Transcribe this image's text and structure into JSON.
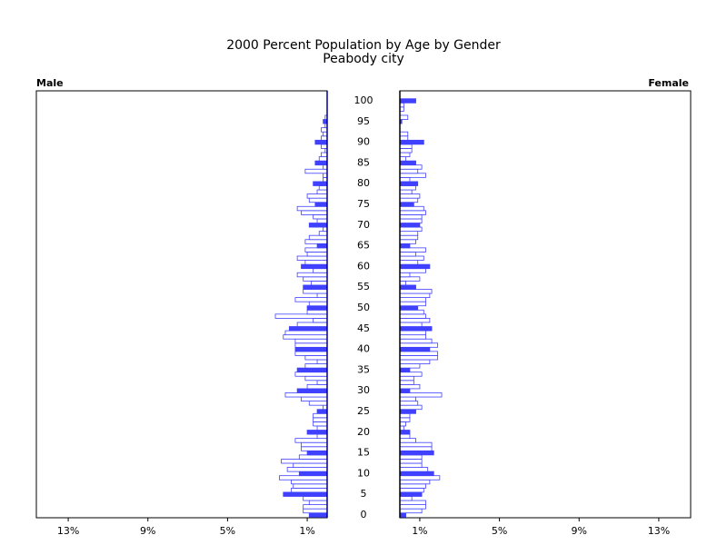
{
  "chart_data": {
    "type": "pyramid",
    "title": "2000 Percent Population by Age by Gender",
    "subtitle": "Peabody city",
    "categories": [
      0,
      null,
      null,
      null,
      null,
      5,
      null,
      null,
      null,
      null,
      10,
      null,
      null,
      null,
      null,
      15,
      null,
      null,
      null,
      null,
      20,
      null,
      null,
      null,
      null,
      25,
      null,
      null,
      null,
      null,
      30,
      null,
      null,
      null,
      null,
      35,
      null,
      null,
      null,
      null,
      40,
      null,
      null,
      null,
      null,
      45,
      null,
      null,
      null,
      null,
      50,
      null,
      null,
      null,
      null,
      55,
      null,
      null,
      null,
      null,
      60,
      null,
      null,
      null,
      null,
      65,
      null,
      null,
      null,
      null,
      70,
      null,
      null,
      null,
      null,
      75,
      null,
      null,
      null,
      null,
      80,
      null,
      null,
      null,
      null,
      85,
      null,
      null,
      null,
      null,
      90,
      null,
      null,
      null,
      null,
      95,
      null,
      null,
      null,
      null,
      100
    ],
    "series": [
      {
        "name": "Male",
        "color": "#4040ff",
        "values": [
          0.9,
          1.2,
          1.2,
          0.9,
          1.2,
          2.2,
          1.8,
          1.7,
          1.8,
          2.4,
          1.4,
          2.0,
          1.7,
          2.3,
          1.4,
          1.0,
          1.3,
          1.3,
          1.6,
          0.5,
          1.0,
          0.5,
          0.7,
          0.7,
          0.7,
          0.5,
          0.2,
          0.9,
          1.3,
          2.1,
          1.5,
          1.0,
          0.5,
          1.1,
          1.6,
          1.5,
          1.1,
          0.5,
          1.1,
          1.6,
          1.6,
          1.6,
          1.6,
          2.2,
          2.1,
          1.9,
          1.5,
          0.7,
          2.6,
          1.0,
          1.0,
          0.9,
          1.6,
          0.5,
          1.2,
          1.2,
          0.8,
          1.2,
          1.5,
          0.7,
          1.3,
          1.1,
          1.5,
          1.0,
          1.1,
          0.5,
          1.1,
          0.9,
          0.4,
          0.2,
          0.9,
          0.5,
          0.7,
          1.3,
          1.5,
          0.6,
          0.9,
          1.0,
          0.5,
          0.4,
          0.7,
          0.2,
          0.2,
          1.1,
          0.2,
          0.6,
          0.4,
          0.3,
          0.1,
          0.3,
          0.6,
          0.3,
          0.2,
          0.3,
          0.1,
          0.2,
          0.1,
          0,
          0,
          0,
          0
        ]
      },
      {
        "name": "Female",
        "color": "#4040ff",
        "values": [
          0.3,
          1.1,
          1.3,
          1.3,
          0.6,
          1.1,
          1.2,
          1.3,
          1.5,
          2.0,
          1.7,
          1.4,
          1.1,
          1.1,
          1.1,
          1.7,
          1.6,
          1.6,
          0.8,
          0.5,
          0.5,
          0.2,
          0.3,
          0.5,
          0.5,
          0.8,
          1.1,
          0.9,
          0.8,
          2.1,
          0.5,
          1.0,
          0.7,
          0.7,
          1.1,
          0.5,
          1.0,
          1.5,
          1.9,
          1.9,
          1.5,
          1.9,
          1.6,
          1.3,
          1.3,
          1.6,
          1.1,
          1.5,
          1.3,
          1.2,
          0.9,
          1.3,
          1.3,
          1.5,
          1.6,
          0.8,
          0.3,
          1.0,
          0.5,
          1.3,
          1.5,
          0.9,
          1.2,
          0.8,
          1.3,
          0.5,
          0.8,
          0.9,
          0.9,
          1.1,
          1.0,
          1.1,
          1.1,
          1.3,
          1.2,
          0.7,
          0.9,
          1.0,
          0.6,
          0.8,
          0.9,
          0.5,
          1.3,
          0.9,
          1.1,
          0.8,
          0.3,
          0.5,
          0.6,
          0.6,
          1.2,
          0.4,
          0.4,
          0,
          0,
          0.1,
          0.4,
          0,
          0.2,
          0.2,
          0.8
        ]
      }
    ],
    "xlim": [
      0,
      14.6
    ],
    "xticks": [
      {
        "value": 1,
        "label": "1%"
      },
      {
        "value": 5,
        "label": "5%"
      },
      {
        "value": 9,
        "label": "9%"
      },
      {
        "value": 13,
        "label": "13%"
      }
    ]
  }
}
